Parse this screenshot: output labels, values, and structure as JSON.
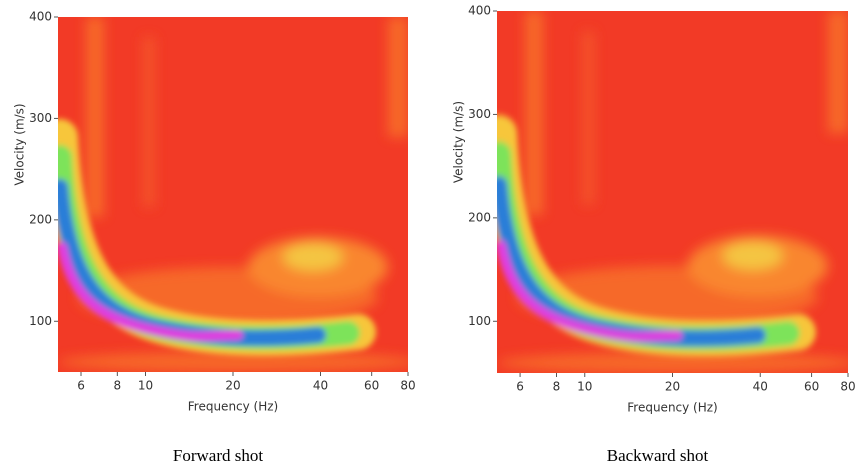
{
  "chart_data": [
    {
      "type": "dispersion",
      "caption": "Forward shot",
      "xlabel": "Frequency (Hz)",
      "ylabel": "Velocity (m/s)",
      "xscale": "log",
      "xlim": [
        5,
        80
      ],
      "xticks": [
        6,
        8,
        10,
        20,
        40,
        60,
        80
      ],
      "ylim": [
        50,
        400
      ],
      "yticks": [
        100,
        200,
        300,
        400
      ]
    },
    {
      "type": "dispersion",
      "caption": "Backward shot",
      "xlabel": "Frequency (Hz)",
      "ylabel": "Velocity (m/s)",
      "xscale": "log",
      "xlim": [
        5,
        80
      ],
      "xticks": [
        6,
        8,
        10,
        20,
        40,
        60,
        80
      ],
      "ylim": [
        50,
        400
      ],
      "yticks": [
        100,
        200,
        300,
        400
      ]
    }
  ]
}
